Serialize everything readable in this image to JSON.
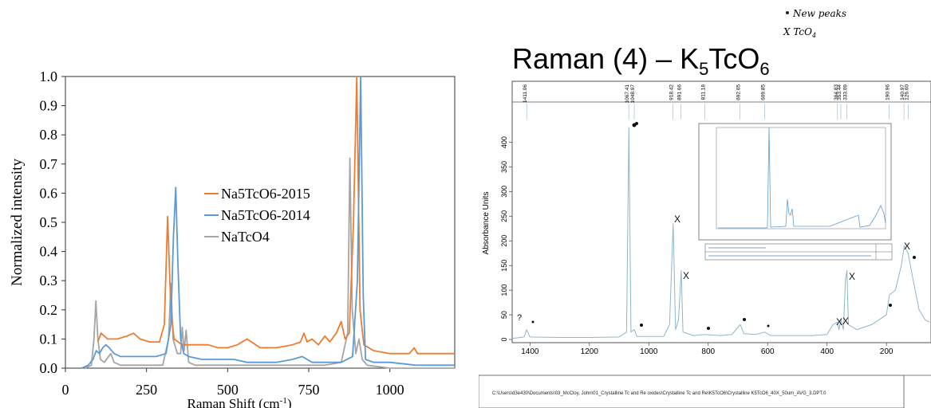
{
  "chart_data": [
    {
      "type": "line",
      "title": "",
      "xlabel": "Raman Shift (cm",
      "xlabel_sup": "-1",
      "xlabel_close": ")",
      "ylabel": "Normalized intensity",
      "xlim": [
        0,
        1200
      ],
      "ylim": [
        0.0,
        1.0
      ],
      "xticks": [
        "0",
        "250",
        "500",
        "750",
        "1000"
      ],
      "yticks": [
        "0.0",
        "0.1",
        "0.2",
        "0.3",
        "0.4",
        "0.5",
        "0.6",
        "0.7",
        "0.8",
        "0.9",
        "1.0"
      ],
      "grid": false,
      "legend": "center",
      "series": [
        {
          "name": "Na5TcO6-2015",
          "color": "#ed7d31",
          "points": [
            [
              100,
              0.09
            ],
            [
              110,
              0.12
            ],
            [
              130,
              0.1
            ],
            [
              160,
              0.1
            ],
            [
              190,
              0.11
            ],
            [
              210,
              0.12
            ],
            [
              230,
              0.1
            ],
            [
              260,
              0.09
            ],
            [
              290,
              0.09
            ],
            [
              305,
              0.15
            ],
            [
              315,
              0.52
            ],
            [
              325,
              0.2
            ],
            [
              335,
              0.1
            ],
            [
              360,
              0.08
            ],
            [
              400,
              0.08
            ],
            [
              440,
              0.08
            ],
            [
              470,
              0.07
            ],
            [
              500,
              0.07
            ],
            [
              530,
              0.08
            ],
            [
              560,
              0.1
            ],
            [
              600,
              0.07
            ],
            [
              650,
              0.07
            ],
            [
              700,
              0.08
            ],
            [
              725,
              0.09
            ],
            [
              735,
              0.12
            ],
            [
              745,
              0.09
            ],
            [
              760,
              0.1
            ],
            [
              780,
              0.08
            ],
            [
              800,
              0.11
            ],
            [
              815,
              0.09
            ],
            [
              835,
              0.12
            ],
            [
              850,
              0.16
            ],
            [
              862,
              0.1
            ],
            [
              875,
              0.12
            ],
            [
              888,
              0.5
            ],
            [
              898,
              1.0
            ],
            [
              908,
              0.2
            ],
            [
              920,
              0.08
            ],
            [
              950,
              0.06
            ],
            [
              1000,
              0.05
            ],
            [
              1060,
              0.05
            ],
            [
              1075,
              0.07
            ],
            [
              1085,
              0.05
            ],
            [
              1200,
              0.05
            ]
          ]
        },
        {
          "name": "Na5TcO6-2014",
          "color": "#5b9bd5",
          "points": [
            [
              50,
              0.0
            ],
            [
              70,
              0.01
            ],
            [
              85,
              0.03
            ],
            [
              95,
              0.06
            ],
            [
              105,
              0.05
            ],
            [
              115,
              0.07
            ],
            [
              125,
              0.08
            ],
            [
              135,
              0.07
            ],
            [
              150,
              0.05
            ],
            [
              170,
              0.04
            ],
            [
              200,
              0.04
            ],
            [
              240,
              0.04
            ],
            [
              280,
              0.04
            ],
            [
              310,
              0.05
            ],
            [
              325,
              0.15
            ],
            [
              333,
              0.45
            ],
            [
              340,
              0.62
            ],
            [
              347,
              0.35
            ],
            [
              355,
              0.1
            ],
            [
              365,
              0.05
            ],
            [
              380,
              0.04
            ],
            [
              420,
              0.03
            ],
            [
              480,
              0.03
            ],
            [
              520,
              0.03
            ],
            [
              560,
              0.02
            ],
            [
              600,
              0.02
            ],
            [
              650,
              0.02
            ],
            [
              700,
              0.03
            ],
            [
              730,
              0.04
            ],
            [
              760,
              0.02
            ],
            [
              800,
              0.02
            ],
            [
              850,
              0.02
            ],
            [
              885,
              0.04
            ],
            [
              900,
              0.3
            ],
            [
              910,
              1.0
            ],
            [
              918,
              0.25
            ],
            [
              925,
              0.03
            ],
            [
              950,
              0.02
            ],
            [
              1000,
              0.02
            ],
            [
              1080,
              0.01
            ],
            [
              1100,
              0.01
            ],
            [
              1200,
              0.01
            ]
          ]
        },
        {
          "name": "NaTcO4",
          "color": "#a5a5a5",
          "points": [
            [
              60,
              0.0
            ],
            [
              80,
              0.01
            ],
            [
              88,
              0.1
            ],
            [
              94,
              0.23
            ],
            [
              100,
              0.1
            ],
            [
              108,
              0.03
            ],
            [
              120,
              0.02
            ],
            [
              140,
              0.05
            ],
            [
              150,
              0.02
            ],
            [
              170,
              0.01
            ],
            [
              250,
              0.01
            ],
            [
              300,
              0.01
            ],
            [
              318,
              0.1
            ],
            [
              325,
              0.29
            ],
            [
              332,
              0.1
            ],
            [
              345,
              0.05
            ],
            [
              355,
              0.05
            ],
            [
              360,
              0.14
            ],
            [
              366,
              0.06
            ],
            [
              372,
              0.13
            ],
            [
              380,
              0.02
            ],
            [
              400,
              0.01
            ],
            [
              600,
              0.01
            ],
            [
              800,
              0.01
            ],
            [
              850,
              0.02
            ],
            [
              870,
              0.12
            ],
            [
              877,
              0.72
            ],
            [
              884,
              0.2
            ],
            [
              895,
              0.05
            ],
            [
              905,
              0.1
            ],
            [
              915,
              0.03
            ],
            [
              930,
              0.01
            ],
            [
              1000,
              0.0
            ],
            [
              1200,
              0.0
            ]
          ]
        }
      ]
    },
    {
      "type": "line",
      "title": "Raman (4) – K",
      "title_sub": "5",
      "title_rest": "TcO",
      "title_sub2": "6",
      "ylabel": "Absorbance Units",
      "xlim": [
        1460,
        50
      ],
      "ylim": [
        0,
        430
      ],
      "xticks": [
        "1400",
        "1200",
        "1000",
        "800",
        "600",
        "400",
        "200"
      ],
      "yticks": [
        "0",
        "50",
        "100",
        "150",
        "200",
        "250",
        "300",
        "350",
        "400"
      ],
      "peak_labels": [
        "1411.06",
        "1067.41",
        "1048.97",
        "918.42",
        "891.66",
        "811.18",
        "692.65",
        "609.85",
        "364.83",
        "353.44",
        "333.09",
        "190.96",
        "140.97",
        "126.60"
      ],
      "series": [
        {
          "name": "",
          "color": "#8fb6c8",
          "points": [
            [
              1460,
              2
            ],
            [
              1420,
              5
            ],
            [
              1411,
              20
            ],
            [
              1400,
              5
            ],
            [
              1300,
              4
            ],
            [
              1200,
              4
            ],
            [
              1100,
              5
            ],
            [
              1075,
              15
            ],
            [
              1067,
              430
            ],
            [
              1060,
              15
            ],
            [
              1049,
              20
            ],
            [
              1040,
              6
            ],
            [
              950,
              6
            ],
            [
              930,
              30
            ],
            [
              918,
              235
            ],
            [
              910,
              20
            ],
            [
              900,
              40
            ],
            [
              891,
              140
            ],
            [
              885,
              15
            ],
            [
              850,
              8
            ],
            [
              811,
              10
            ],
            [
              760,
              8
            ],
            [
              720,
              10
            ],
            [
              700,
              25
            ],
            [
              692,
              30
            ],
            [
              680,
              12
            ],
            [
              640,
              10
            ],
            [
              610,
              15
            ],
            [
              590,
              8
            ],
            [
              500,
              8
            ],
            [
              450,
              8
            ],
            [
              400,
              10
            ],
            [
              380,
              30
            ],
            [
              365,
              35
            ],
            [
              360,
              20
            ],
            [
              353,
              40
            ],
            [
              345,
              20
            ],
            [
              338,
              120
            ],
            [
              333,
              140
            ],
            [
              328,
              30
            ],
            [
              300,
              20
            ],
            [
              250,
              30
            ],
            [
              200,
              50
            ],
            [
              190,
              90
            ],
            [
              170,
              100
            ],
            [
              150,
              150
            ],
            [
              140,
              190
            ],
            [
              127,
              175
            ],
            [
              110,
              120
            ],
            [
              90,
              60
            ],
            [
              70,
              40
            ],
            [
              55,
              35
            ]
          ]
        }
      ]
    }
  ],
  "annotations": {
    "new_peaks": "New peaks",
    "tco4": "X TcO",
    "tco4_sub": "4",
    "path": "C:\\Users\\d3e430\\Documents\\03_McCloy, John\\01_Crystalline Tc and Re oxides\\Crystalline Tc and Re\\K5TcO6\\Crystalline K5TcO6_40X_50um_AVG_3.DPT.0"
  }
}
